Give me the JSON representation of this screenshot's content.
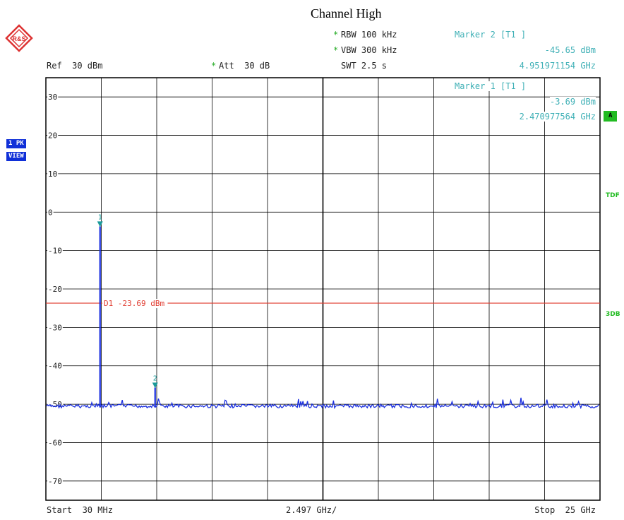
{
  "header": {
    "title": "Channel High",
    "rbw_star": "*",
    "rbw": "RBW 100 kHz",
    "vbw_star": "*",
    "vbw": "VBW 300 kHz",
    "swt": "SWT 2.5 s",
    "ref": "Ref  30 dBm",
    "att_star": "*",
    "att": "Att  30 dB"
  },
  "logo": {
    "text": "R&S"
  },
  "markers": {
    "m2_title": "Marker 2 [T1 ]",
    "m2_level": "-45.65 dBm",
    "m2_freq": "4.951971154 GHz",
    "m1_title": "Marker 1 [T1 ]",
    "m1_level": "-3.69 dBm",
    "m1_freq": "2.470977564 GHz",
    "m1_label": "1",
    "m2_label": "2"
  },
  "side": {
    "trace_badge": "1 PK",
    "view_badge": "VIEW",
    "a_badge": "A",
    "tdf": "TDF",
    "threedb": "3DB"
  },
  "footer": {
    "start": "Start  30 MHz",
    "span": "2.497 GHz/",
    "stop": "Stop  25 GHz"
  },
  "colors": {
    "grid": "#000000",
    "trace": "#1a2fe0",
    "display_line": "#e03a2e",
    "marker": "#1a9a9a"
  },
  "chart_data": {
    "type": "line",
    "ylim": [
      -75,
      35
    ],
    "yticks": [
      30,
      20,
      10,
      0,
      -10,
      -20,
      -30,
      -40,
      -50,
      -60,
      -70
    ],
    "ytick_labels": [
      "30",
      "20",
      "10",
      "0",
      "-10",
      "-20",
      "-30",
      "-40",
      "-50",
      "-60",
      "-70"
    ],
    "x_unit": "GHz",
    "xlim": [
      0.03,
      25.0
    ],
    "display_line": {
      "label": "D1 -23.69 dBm",
      "value": -23.69
    },
    "markers": [
      {
        "id": "1",
        "x": 2.470977564,
        "y": -3.69
      },
      {
        "id": "2",
        "x": 4.951971154,
        "y": -45.65
      }
    ],
    "noise_floor": -50.5,
    "series": [
      {
        "values_note": "",
        "peaks": [
          {
            "x": 2.470977564,
            "y": -3.69
          },
          {
            "x": 4.951971154,
            "y": -45.65
          }
        ]
      }
    ]
  }
}
